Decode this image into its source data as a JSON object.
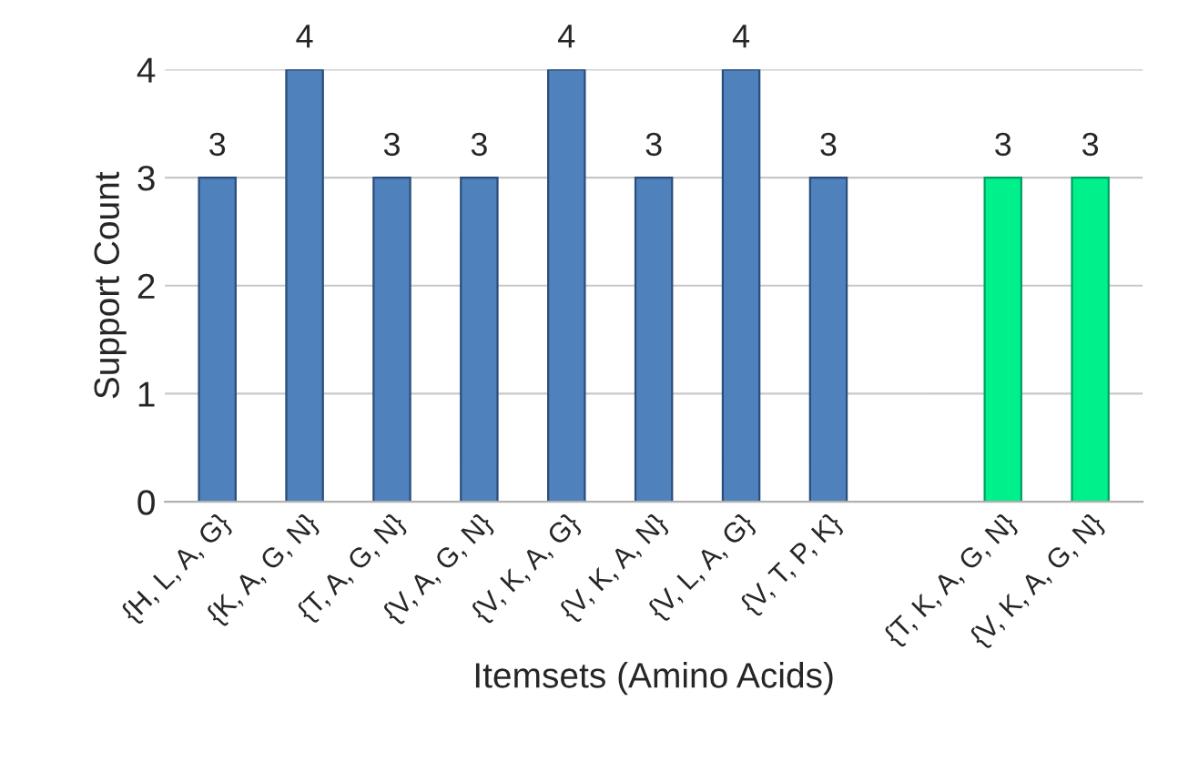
{
  "chart_data": {
    "type": "bar",
    "xlabel": "Itemsets (Amino Acids)",
    "ylabel": "Support Count",
    "categories": [
      "{H, L, A, G}",
      "{K, A, G, N}",
      "{T, A, G, N}",
      "{V, A, G, N}",
      "{V, K, A, G}",
      "{V, K, A, N}",
      "{V, L, A, G}",
      "{V, T, P, K}",
      null,
      "{T, K, A, G, N}",
      "{V, K, A, G, N}"
    ],
    "values": [
      3,
      4,
      3,
      3,
      4,
      3,
      4,
      3,
      null,
      3,
      3
    ],
    "colors": [
      "#4f81bd",
      "#4f81bd",
      "#4f81bd",
      "#4f81bd",
      "#4f81bd",
      "#4f81bd",
      "#4f81bd",
      "#4f81bd",
      "#4f81bd",
      "#00f08c",
      "#00f08c"
    ],
    "ylim": [
      0,
      4
    ],
    "yticks": [
      0,
      1,
      2,
      3,
      4
    ],
    "grid": "y",
    "data_labels": true
  }
}
